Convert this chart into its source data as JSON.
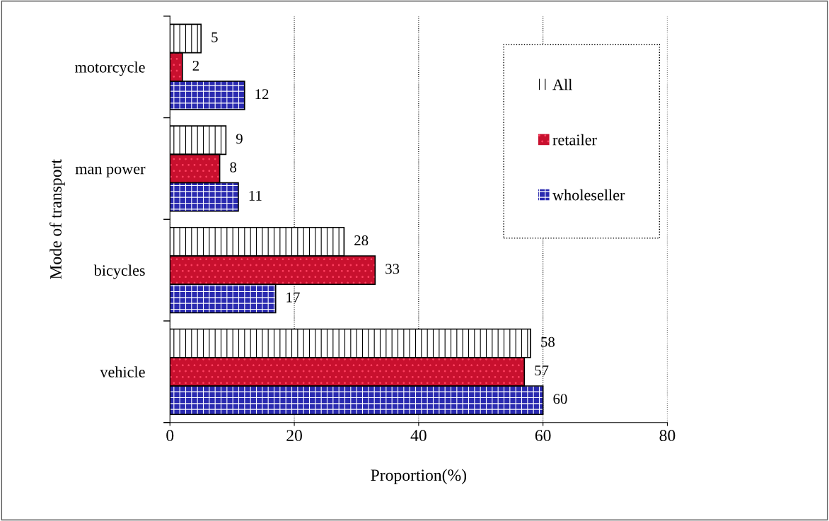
{
  "chart_data": {
    "type": "bar",
    "orientation": "horizontal",
    "xlabel": "Proportion(%)",
    "ylabel": "Mode of transport",
    "categories": [
      "motorcycle",
      "man power",
      "bicycles",
      "vehicle"
    ],
    "series": [
      {
        "name": "All",
        "color": "#ffffff",
        "values": [
          5,
          9,
          28,
          58
        ]
      },
      {
        "name": "retailer",
        "color": "#c8102e",
        "values": [
          2,
          8,
          33,
          57
        ]
      },
      {
        "name": "wholeseller",
        "color": "#2a2ab0",
        "values": [
          12,
          11,
          17,
          60
        ]
      }
    ],
    "xlim": [
      0,
      80
    ],
    "xticks": [
      0,
      20,
      40,
      60,
      80
    ],
    "grid": "x",
    "legend": "top right",
    "data_labels": true
  }
}
